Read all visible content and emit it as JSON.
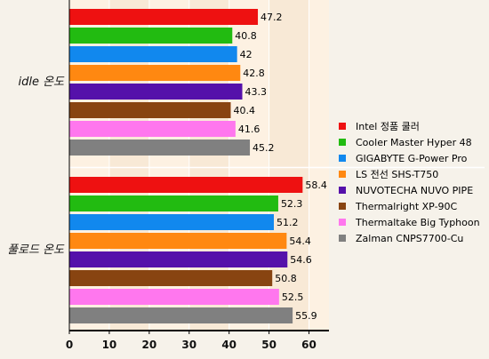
{
  "chart_data": {
    "type": "bar",
    "orientation": "horizontal",
    "categories": [
      "idle 온도",
      "풀로드 온도"
    ],
    "series": [
      {
        "name": "Intel 정품 쿨러",
        "color": "#ee1111",
        "values": [
          47.2,
          58.4
        ]
      },
      {
        "name": "Cooler Master Hyper 48",
        "color": "#22bb11",
        "values": [
          40.8,
          52.3
        ]
      },
      {
        "name": "GIGABYTE G-Power Pro",
        "color": "#1188ee",
        "values": [
          42,
          51.2
        ]
      },
      {
        "name": "LS 전선 SHS-T750",
        "color": "#ff8811",
        "values": [
          42.8,
          54.4
        ]
      },
      {
        "name": "NUVOTECHA NUVO PIPE",
        "color": "#5511aa",
        "values": [
          43.3,
          54.6
        ]
      },
      {
        "name": "Thermalright XP-90C",
        "color": "#884411",
        "values": [
          40.4,
          50.8
        ]
      },
      {
        "name": "Thermaltake Big Typhoon",
        "color": "#ff77ee",
        "values": [
          41.6,
          52.5
        ]
      },
      {
        "name": "Zalman CNPS7700-Cu",
        "color": "#808080",
        "values": [
          45.2,
          55.9
        ]
      }
    ],
    "xlim": [
      0,
      65
    ],
    "xticks": [
      0,
      10,
      20,
      30,
      40,
      50,
      60
    ],
    "legend": "right",
    "grid": true
  }
}
